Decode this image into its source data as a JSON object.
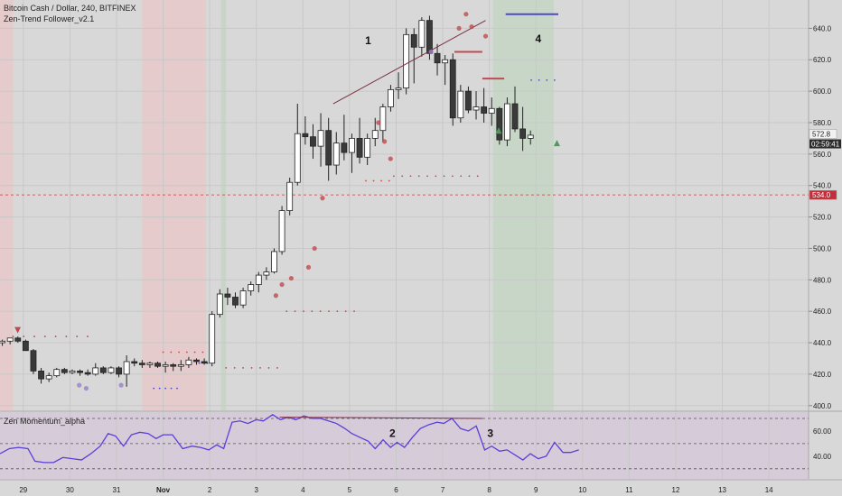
{
  "header": {
    "symbol_line": "Bitcoin Cash / Dollar, 240, BITFINEX",
    "indicator": "Zen-Trend Follower_v2.1",
    "sub_indicator": "Zen Momentum_alpha"
  },
  "colors": {
    "background": "#d8d8d8",
    "red_zone": "#e7c9c9",
    "green_zone": "#c6d6c6",
    "sub_panel": "#d6cbd8",
    "candle_up_fill": "#ffffff",
    "candle_down_fill": "#3a3a3a",
    "momentum_line": "#5a3fd9",
    "annotation_line": "#7a3040",
    "dot_red": "#c04a50",
    "dot_blue": "#4a4ad0",
    "price_badge": "#f2f2f2",
    "level_badge": "#c0303a"
  },
  "annotations": [
    "1",
    "2",
    "3",
    "4"
  ],
  "chart_data": [
    {
      "type": "candlestick",
      "title": "Bitcoin Cash / Dollar, 240, BITFINEX",
      "x_tick_labels": [
        "29",
        "30",
        "31",
        "Nov",
        "2",
        "3",
        "4",
        "5",
        "6",
        "7",
        "8",
        "9",
        "10",
        "11",
        "12",
        "13",
        "14"
      ],
      "y_ticks": [
        400,
        420,
        440,
        460,
        480,
        500,
        520,
        540,
        560,
        580,
        600,
        620,
        640
      ],
      "y_tick_labels": [
        "400.0",
        "420.0",
        "440.0",
        "460.0",
        "480.0",
        "500.0",
        "520.0",
        "540.0",
        "560.0",
        "580.0",
        "600.0",
        "620.0",
        "640.0"
      ],
      "ylim": [
        397,
        658
      ],
      "x_range_days": [
        28.5,
        14.9
      ],
      "candles_per_day": 6,
      "start_day": 28.55,
      "last_price": "572.8",
      "countdown": "02:59:41",
      "level_line": {
        "value": 534.0,
        "label": "534.0"
      },
      "ohlc": [
        [
          440,
          442,
          438,
          441
        ],
        [
          441,
          443,
          439,
          443
        ],
        [
          443,
          444,
          440,
          441
        ],
        [
          441,
          442,
          435,
          435
        ],
        [
          435,
          436,
          420,
          422
        ],
        [
          422,
          424,
          414,
          417
        ],
        [
          417,
          421,
          415,
          419
        ],
        [
          419,
          424,
          418,
          423
        ],
        [
          423,
          424,
          420,
          421
        ],
        [
          421,
          423,
          420,
          422
        ],
        [
          422,
          423,
          419,
          421
        ],
        [
          421,
          423,
          419,
          420
        ],
        [
          420,
          427,
          419,
          424
        ],
        [
          424,
          425,
          420,
          421
        ],
        [
          421,
          425,
          420,
          424
        ],
        [
          424,
          425,
          418,
          420
        ],
        [
          420,
          432,
          412,
          428
        ],
        [
          428,
          430,
          425,
          427
        ],
        [
          427,
          429,
          424,
          426
        ],
        [
          426,
          428,
          424,
          427
        ],
        [
          427,
          428,
          424,
          425
        ],
        [
          425,
          428,
          421,
          426
        ],
        [
          426,
          427,
          422,
          425
        ],
        [
          425,
          429,
          422,
          426
        ],
        [
          426,
          431,
          424,
          429
        ],
        [
          429,
          430,
          426,
          428
        ],
        [
          428,
          430,
          426,
          427
        ],
        [
          427,
          460,
          425,
          458
        ],
        [
          458,
          474,
          456,
          471
        ],
        [
          471,
          475,
          464,
          469
        ],
        [
          469,
          472,
          462,
          464
        ],
        [
          464,
          475,
          462,
          473
        ],
        [
          473,
          479,
          470,
          477
        ],
        [
          477,
          485,
          472,
          483
        ],
        [
          483,
          488,
          480,
          485
        ],
        [
          485,
          500,
          484,
          498
        ],
        [
          498,
          527,
          496,
          524
        ],
        [
          524,
          545,
          521,
          542
        ],
        [
          542,
          592,
          540,
          573
        ],
        [
          573,
          584,
          566,
          571
        ],
        [
          571,
          579,
          557,
          565
        ],
        [
          565,
          586,
          552,
          575
        ],
        [
          575,
          583,
          543,
          553
        ],
        [
          553,
          574,
          547,
          567
        ],
        [
          567,
          585,
          556,
          561
        ],
        [
          561,
          573,
          548,
          570
        ],
        [
          570,
          583,
          554,
          558
        ],
        [
          558,
          573,
          553,
          570
        ],
        [
          570,
          583,
          565,
          575
        ],
        [
          575,
          592,
          568,
          590
        ],
        [
          590,
          604,
          587,
          601
        ],
        [
          601,
          612,
          595,
          602
        ],
        [
          602,
          640,
          598,
          636
        ],
        [
          636,
          640,
          605,
          628
        ],
        [
          628,
          647,
          622,
          645
        ],
        [
          645,
          648,
          620,
          624
        ],
        [
          624,
          630,
          610,
          618
        ],
        [
          618,
          623,
          604,
          620
        ],
        [
          620,
          624,
          578,
          583
        ],
        [
          583,
          604,
          580,
          600
        ],
        [
          600,
          603,
          586,
          588
        ],
        [
          588,
          600,
          582,
          590
        ],
        [
          590,
          602,
          580,
          586
        ],
        [
          586,
          596,
          578,
          589
        ],
        [
          589,
          590,
          566,
          569
        ],
        [
          569,
          596,
          565,
          592
        ],
        [
          592,
          603,
          574,
          576
        ],
        [
          576,
          590,
          562,
          570
        ],
        [
          570,
          575,
          566,
          572
        ]
      ],
      "zones": [
        {
          "color": "red",
          "from_day": 28.48,
          "to_day": 28.78
        },
        {
          "color": "red",
          "from_day": 31.55,
          "to_day": 32.92
        },
        {
          "color": "green",
          "from_day": 33.24,
          "to_day": 33.35
        },
        {
          "color": "green",
          "from_day": 39.08,
          "to_day": 40.38
        }
      ],
      "dot_rows": [
        {
          "color": "red",
          "from_day": 28.78,
          "to_day": 30.38,
          "value": 444,
          "count": 8
        },
        {
          "color": "red",
          "from_day": 32.0,
          "to_day": 32.85,
          "value": 434,
          "count": 6
        },
        {
          "color": "blue",
          "from_day": 31.8,
          "to_day": 32.3,
          "value": 411,
          "count": 5
        },
        {
          "color": "blue",
          "from_day": 32.6,
          "to_day": 32.95,
          "value": 427,
          "count": 3
        },
        {
          "color": "red",
          "from_day": 33.35,
          "to_day": 34.45,
          "value": 424,
          "count": 7
        },
        {
          "color": "red",
          "from_day": 34.65,
          "to_day": 36.1,
          "value": 460,
          "count": 9
        },
        {
          "color": "red",
          "from_day": 36.35,
          "to_day": 36.85,
          "value": 543,
          "count": 4
        },
        {
          "color": "red",
          "from_day": 36.95,
          "to_day": 38.75,
          "value": 546,
          "count": 11
        },
        {
          "color": "blue",
          "from_day": 39.9,
          "to_day": 40.4,
          "value": 607,
          "count": 4
        }
      ],
      "signal_dots": [
        {
          "color": "red",
          "day": 36.62,
          "value": 580
        },
        {
          "color": "red",
          "day": 36.75,
          "value": 568
        },
        {
          "color": "red",
          "day": 36.88,
          "value": 557
        },
        {
          "color": "red",
          "day": 35.42,
          "value": 532
        },
        {
          "color": "red",
          "day": 35.25,
          "value": 500
        },
        {
          "color": "red",
          "day": 35.12,
          "value": 488
        },
        {
          "color": "red",
          "day": 34.75,
          "value": 481
        },
        {
          "color": "red",
          "day": 34.55,
          "value": 477
        },
        {
          "color": "red",
          "day": 34.42,
          "value": 470
        },
        {
          "color": "purple",
          "day": 30.2,
          "value": 413
        },
        {
          "color": "purple",
          "day": 30.35,
          "value": 411
        },
        {
          "color": "purple",
          "day": 31.1,
          "value": 413
        },
        {
          "color": "purple",
          "day": 37.75,
          "value": 625
        },
        {
          "color": "red",
          "day": 38.35,
          "value": 640
        },
        {
          "color": "red",
          "day": 38.5,
          "value": 649
        },
        {
          "color": "red",
          "day": 38.62,
          "value": 641
        },
        {
          "color": "red",
          "day": 38.92,
          "value": 635
        }
      ],
      "triangles": [
        {
          "color": "red",
          "direction": "down",
          "day": 28.88,
          "value": 448
        },
        {
          "color": "green",
          "direction": "up",
          "day": 39.2,
          "value": 575
        },
        {
          "color": "green",
          "direction": "up",
          "day": 40.45,
          "value": 567
        }
      ],
      "segments": [
        {
          "color": "annotation",
          "from": [
            35.65,
            592
          ],
          "to": [
            38.92,
            645
          ]
        },
        {
          "color": "red",
          "from": [
            38.25,
            625
          ],
          "to": [
            38.85,
            625
          ]
        },
        {
          "color": "red",
          "from": [
            38.85,
            608
          ],
          "to": [
            39.32,
            608
          ]
        },
        {
          "color": "blue",
          "from": [
            39.35,
            649
          ],
          "to": [
            40.48,
            649
          ]
        }
      ],
      "labels": [
        {
          "text_index": 0,
          "day": 36.4,
          "value": 630
        },
        {
          "text_index": 3,
          "day": 40.05,
          "value": 631
        }
      ]
    },
    {
      "type": "line",
      "title": "Zen Momentum_alpha",
      "y_ticks": [
        40,
        60
      ],
      "y_tick_labels": [
        "40.00",
        "60.00"
      ],
      "ylim": [
        22,
        75
      ],
      "dashed_levels": [
        30,
        50,
        70
      ],
      "series": [
        {
          "values": [
            [
              28.5,
              42
            ],
            [
              28.7,
              46
            ],
            [
              28.9,
              47
            ],
            [
              29.1,
              46
            ],
            [
              29.25,
              36
            ],
            [
              29.45,
              35
            ],
            [
              29.65,
              35
            ],
            [
              29.85,
              39
            ],
            [
              30.05,
              38
            ],
            [
              30.25,
              37
            ],
            [
              30.45,
              42
            ],
            [
              30.65,
              48
            ],
            [
              30.82,
              58
            ],
            [
              30.98,
              56
            ],
            [
              31.15,
              48
            ],
            [
              31.32,
              57
            ],
            [
              31.5,
              59
            ],
            [
              31.68,
              58
            ],
            [
              31.85,
              54
            ],
            [
              32.0,
              57
            ],
            [
              32.2,
              57
            ],
            [
              32.42,
              46
            ],
            [
              32.62,
              48
            ],
            [
              32.8,
              47
            ],
            [
              32.98,
              45
            ],
            [
              33.15,
              49
            ],
            [
              33.3,
              46
            ],
            [
              33.48,
              67
            ],
            [
              33.65,
              68
            ],
            [
              33.82,
              66
            ],
            [
              34.0,
              69
            ],
            [
              34.15,
              68
            ],
            [
              34.35,
              73
            ],
            [
              34.52,
              69
            ],
            [
              34.68,
              71
            ],
            [
              34.85,
              69
            ],
            [
              35.02,
              72
            ],
            [
              35.2,
              70
            ],
            [
              35.38,
              70
            ],
            [
              35.55,
              68
            ],
            [
              35.72,
              66
            ],
            [
              35.9,
              62
            ],
            [
              36.05,
              58
            ],
            [
              36.22,
              55
            ],
            [
              36.4,
              52
            ],
            [
              36.55,
              46
            ],
            [
              36.72,
              53
            ],
            [
              36.88,
              47
            ],
            [
              37.02,
              51
            ],
            [
              37.18,
              47
            ],
            [
              37.35,
              55
            ],
            [
              37.52,
              62
            ],
            [
              37.7,
              65
            ],
            [
              37.88,
              67
            ],
            [
              38.02,
              66
            ],
            [
              38.2,
              70
            ],
            [
              38.38,
              62
            ],
            [
              38.55,
              60
            ],
            [
              38.72,
              64
            ],
            [
              38.9,
              45
            ],
            [
              39.05,
              48
            ],
            [
              39.22,
              44
            ],
            [
              39.38,
              45
            ],
            [
              39.55,
              41
            ],
            [
              39.72,
              37
            ],
            [
              39.88,
              42
            ],
            [
              40.05,
              38
            ],
            [
              40.22,
              40
            ],
            [
              40.4,
              51
            ],
            [
              40.58,
              43
            ],
            [
              40.75,
              43
            ],
            [
              40.92,
              45
            ]
          ]
        }
      ],
      "segments": [
        {
          "color": "annotation",
          "from": [
            34.5,
            71
          ],
          "to": [
            38.85,
            70
          ]
        }
      ],
      "labels": [
        {
          "text_index": 1,
          "day": 36.92,
          "value": 58
        },
        {
          "text_index": 2,
          "day": 39.02,
          "value": 58
        }
      ]
    }
  ]
}
